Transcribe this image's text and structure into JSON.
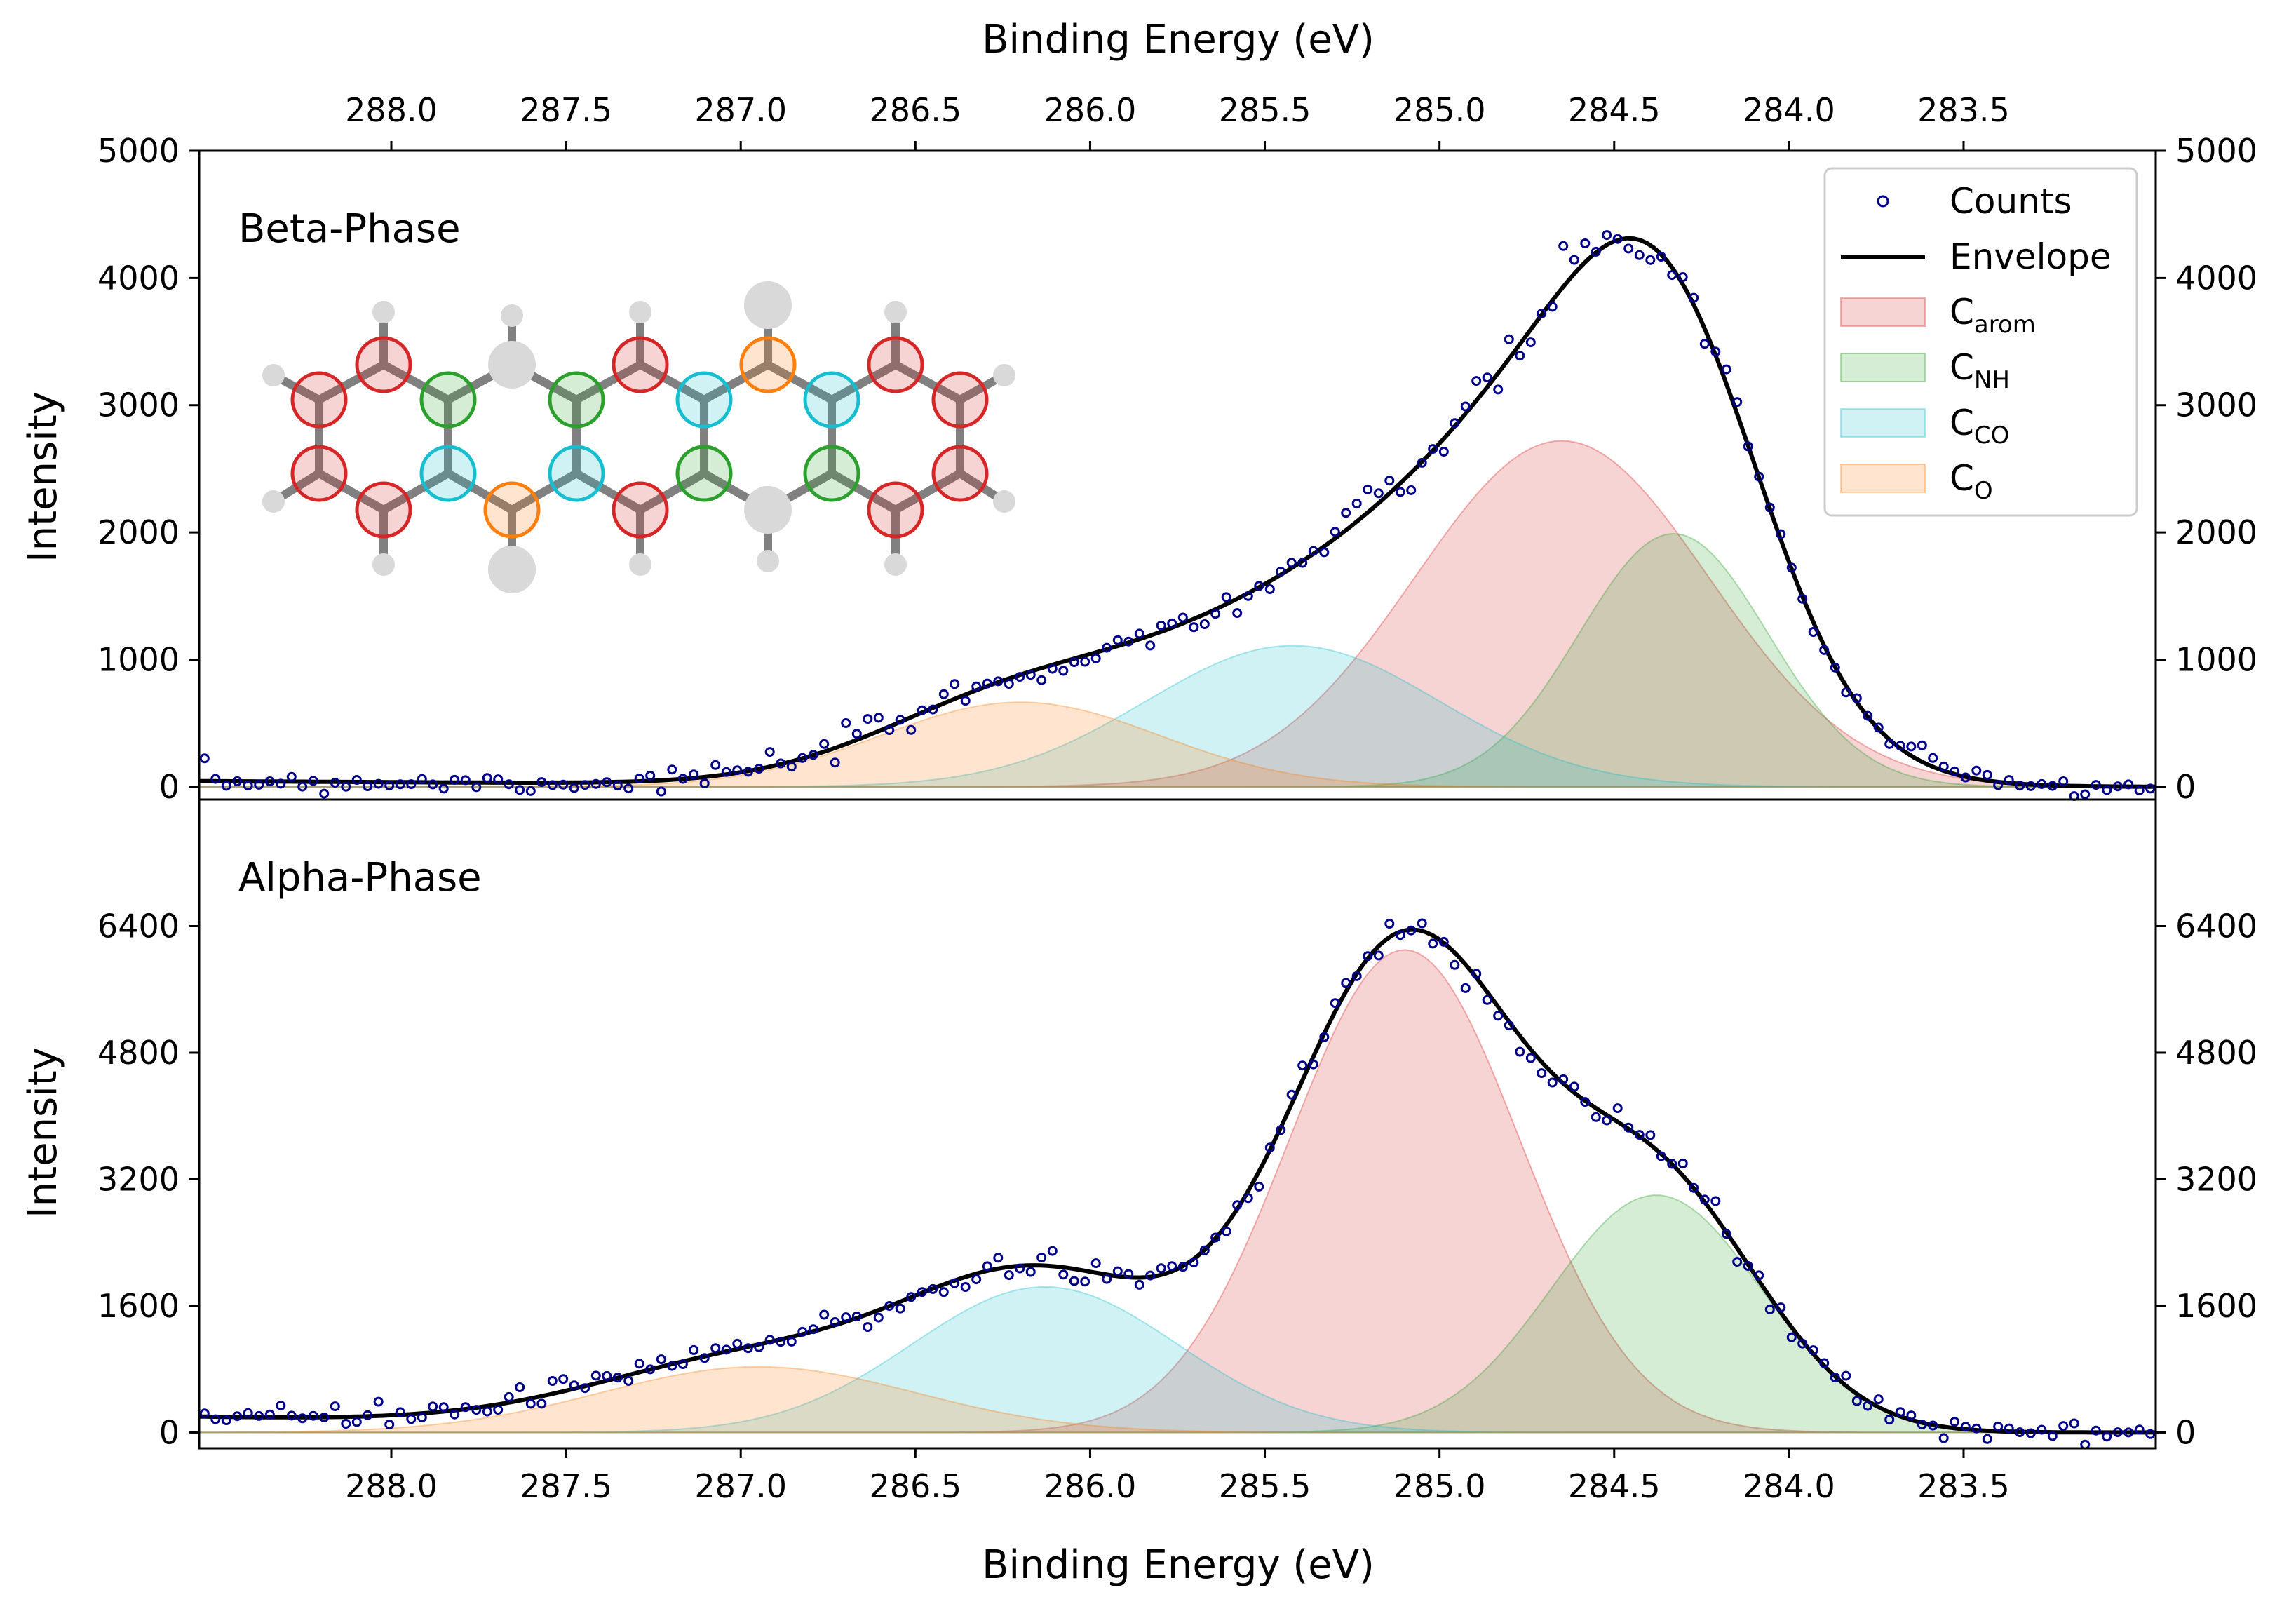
{
  "figure": {
    "top_xlabel": "Binding Energy (eV)",
    "bottom_xlabel": "Binding Energy (eV)",
    "ylabel_top": "Intensity",
    "ylabel_bottom": "Intensity"
  },
  "legend": {
    "items": [
      {
        "key": "counts",
        "label": "Counts",
        "sub": "",
        "kind": "marker",
        "color": "#00008b"
      },
      {
        "key": "envelope",
        "label": "Envelope",
        "sub": "",
        "kind": "line",
        "color": "#000000"
      },
      {
        "key": "carom",
        "label": "C",
        "sub": "arom",
        "kind": "patch",
        "color": "#d62728"
      },
      {
        "key": "cnh",
        "label": "C",
        "sub": "NH",
        "kind": "patch",
        "color": "#2ca02c"
      },
      {
        "key": "cco",
        "label": "C",
        "sub": "CO",
        "kind": "patch",
        "color": "#17becf"
      },
      {
        "key": "co",
        "label": "C",
        "sub": "O",
        "kind": "patch",
        "color": "#ff7f0e"
      }
    ]
  },
  "chart_data": [
    {
      "type": "area",
      "title": "Beta-Phase",
      "xlabel": "Binding Energy (eV)",
      "ylabel": "Intensity",
      "xlim": [
        288.55,
        282.95
      ],
      "ylim": [
        -100,
        5000
      ],
      "x_reversed": true,
      "xticks": [
        "288.0",
        "287.5",
        "287.0",
        "286.5",
        "286.0",
        "285.5",
        "285.0",
        "284.5",
        "284.0",
        "283.5"
      ],
      "yticks": [
        "0",
        "1000",
        "2000",
        "3000",
        "4000",
        "5000"
      ],
      "components": [
        {
          "name": "Carom",
          "color": "#d62728",
          "center": 284.65,
          "amplitude": 2720,
          "sigma": 0.42
        },
        {
          "name": "CNH",
          "color": "#2ca02c",
          "center": 284.33,
          "amplitude": 1990,
          "sigma": 0.27
        },
        {
          "name": "CCO",
          "color": "#17becf",
          "center": 285.42,
          "amplitude": 1110,
          "sigma": 0.42
        },
        {
          "name": "CO",
          "color": "#ff7f0e",
          "center": 286.2,
          "amplitude": 665,
          "sigma": 0.4
        }
      ],
      "background": {
        "left": 45,
        "right": 0,
        "x_left": 288.55,
        "x_right": 282.95
      }
    },
    {
      "type": "area",
      "title": "Alpha-Phase",
      "xlabel": "Binding Energy (eV)",
      "ylabel": "Intensity",
      "xlim": [
        288.55,
        282.95
      ],
      "ylim": [
        -200,
        8000
      ],
      "x_reversed": true,
      "xticks": [
        "288.0",
        "287.5",
        "287.0",
        "286.5",
        "286.0",
        "285.5",
        "285.0",
        "284.5",
        "284.0",
        "283.5"
      ],
      "yticks": [
        "0",
        "1600",
        "3200",
        "4800",
        "6400"
      ],
      "components": [
        {
          "name": "Carom",
          "color": "#d62728",
          "center": 285.1,
          "amplitude": 6100,
          "sigma": 0.33
        },
        {
          "name": "CNH",
          "color": "#2ca02c",
          "center": 284.38,
          "amplitude": 3000,
          "sigma": 0.3
        },
        {
          "name": "CCO",
          "color": "#17becf",
          "center": 286.13,
          "amplitude": 1840,
          "sigma": 0.38
        },
        {
          "name": "CO",
          "color": "#ff7f0e",
          "center": 286.95,
          "amplitude": 830,
          "sigma": 0.45
        }
      ],
      "background": {
        "left": 200,
        "right": 0,
        "x_left": 288.55,
        "x_right": 282.95
      }
    }
  ],
  "molecule": {
    "name": "",
    "ring_colors": {
      "arom": "#d62728",
      "nh": "#2ca02c",
      "co": "#17becf",
      "o": "#ff7f0e",
      "hetero": "#d3d3d3"
    }
  }
}
